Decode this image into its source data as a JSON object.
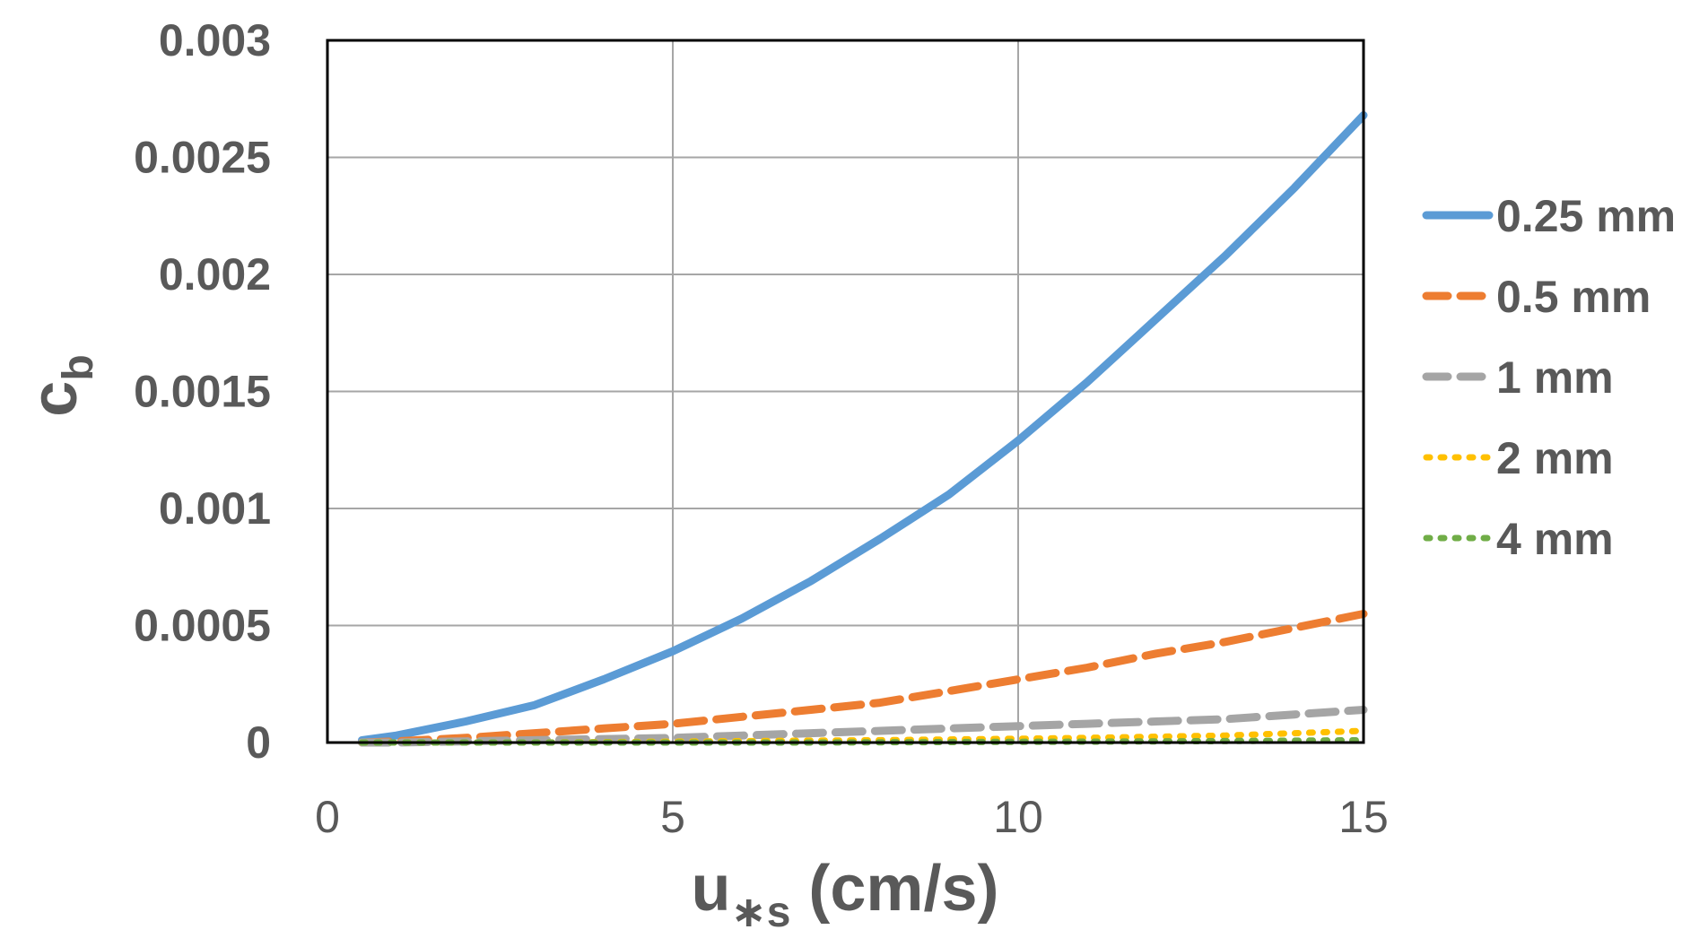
{
  "chart_data": {
    "type": "line",
    "title": "",
    "xlabel": {
      "main": "u",
      "sub": "∗s",
      "rest": " (cm/s)"
    },
    "ylabel": {
      "main": "c",
      "sub": "b"
    },
    "xlim": [
      0,
      15
    ],
    "ylim": [
      0,
      0.003
    ],
    "x_ticks": [
      "0",
      "5",
      "10",
      "15"
    ],
    "y_ticks": [
      "0",
      "0.0005",
      "0.001",
      "0.0015",
      "0.002",
      "0.0025",
      "0.003"
    ],
    "grid": true,
    "legend_position": "right",
    "x": [
      0.5,
      1,
      2,
      3,
      4,
      5,
      6,
      7,
      8,
      9,
      10,
      11,
      12,
      13,
      14,
      15
    ],
    "series": [
      {
        "name": "0.25 mm",
        "color": "#5B9BD5",
        "style": "solid",
        "values": [
          1e-05,
          3e-05,
          9e-05,
          0.00016,
          0.00027,
          0.00039,
          0.00053,
          0.00069,
          0.00087,
          0.00106,
          0.00129,
          0.00154,
          0.00181,
          0.00208,
          0.00237,
          0.00268
        ]
      },
      {
        "name": "0.5 mm",
        "color": "#ED7D31",
        "style": "dash",
        "values": [
          0.0,
          5e-06,
          2e-05,
          4e-05,
          6e-05,
          8e-05,
          0.00011,
          0.00014,
          0.00017,
          0.00022,
          0.00027,
          0.00032,
          0.00038,
          0.00043,
          0.00049,
          0.00055
        ]
      },
      {
        "name": "1 mm",
        "color": "#A5A5A5",
        "style": "dash",
        "values": [
          0.0,
          0.0,
          5e-06,
          1e-05,
          1.5e-05,
          2e-05,
          3e-05,
          4e-05,
          5e-05,
          6e-05,
          7e-05,
          8e-05,
          9e-05,
          0.0001,
          0.00012,
          0.00014
        ]
      },
      {
        "name": "2 mm",
        "color": "#FFC000",
        "style": "dot",
        "values": [
          0.0,
          0.0,
          0.0,
          0.0,
          2e-06,
          4e-06,
          6e-06,
          8e-06,
          1e-05,
          1.3e-05,
          1.6e-05,
          2e-05,
          2.5e-05,
          3e-05,
          4e-05,
          5e-05
        ]
      },
      {
        "name": "4 mm",
        "color": "#70AD47",
        "style": "dot",
        "values": [
          0.0,
          0.0,
          0.0,
          0.0,
          0.0,
          0.0,
          0.0,
          0.0,
          1e-06,
          2e-06,
          3e-06,
          4e-06,
          5e-06,
          6e-06,
          8e-06,
          1e-05
        ]
      }
    ]
  }
}
